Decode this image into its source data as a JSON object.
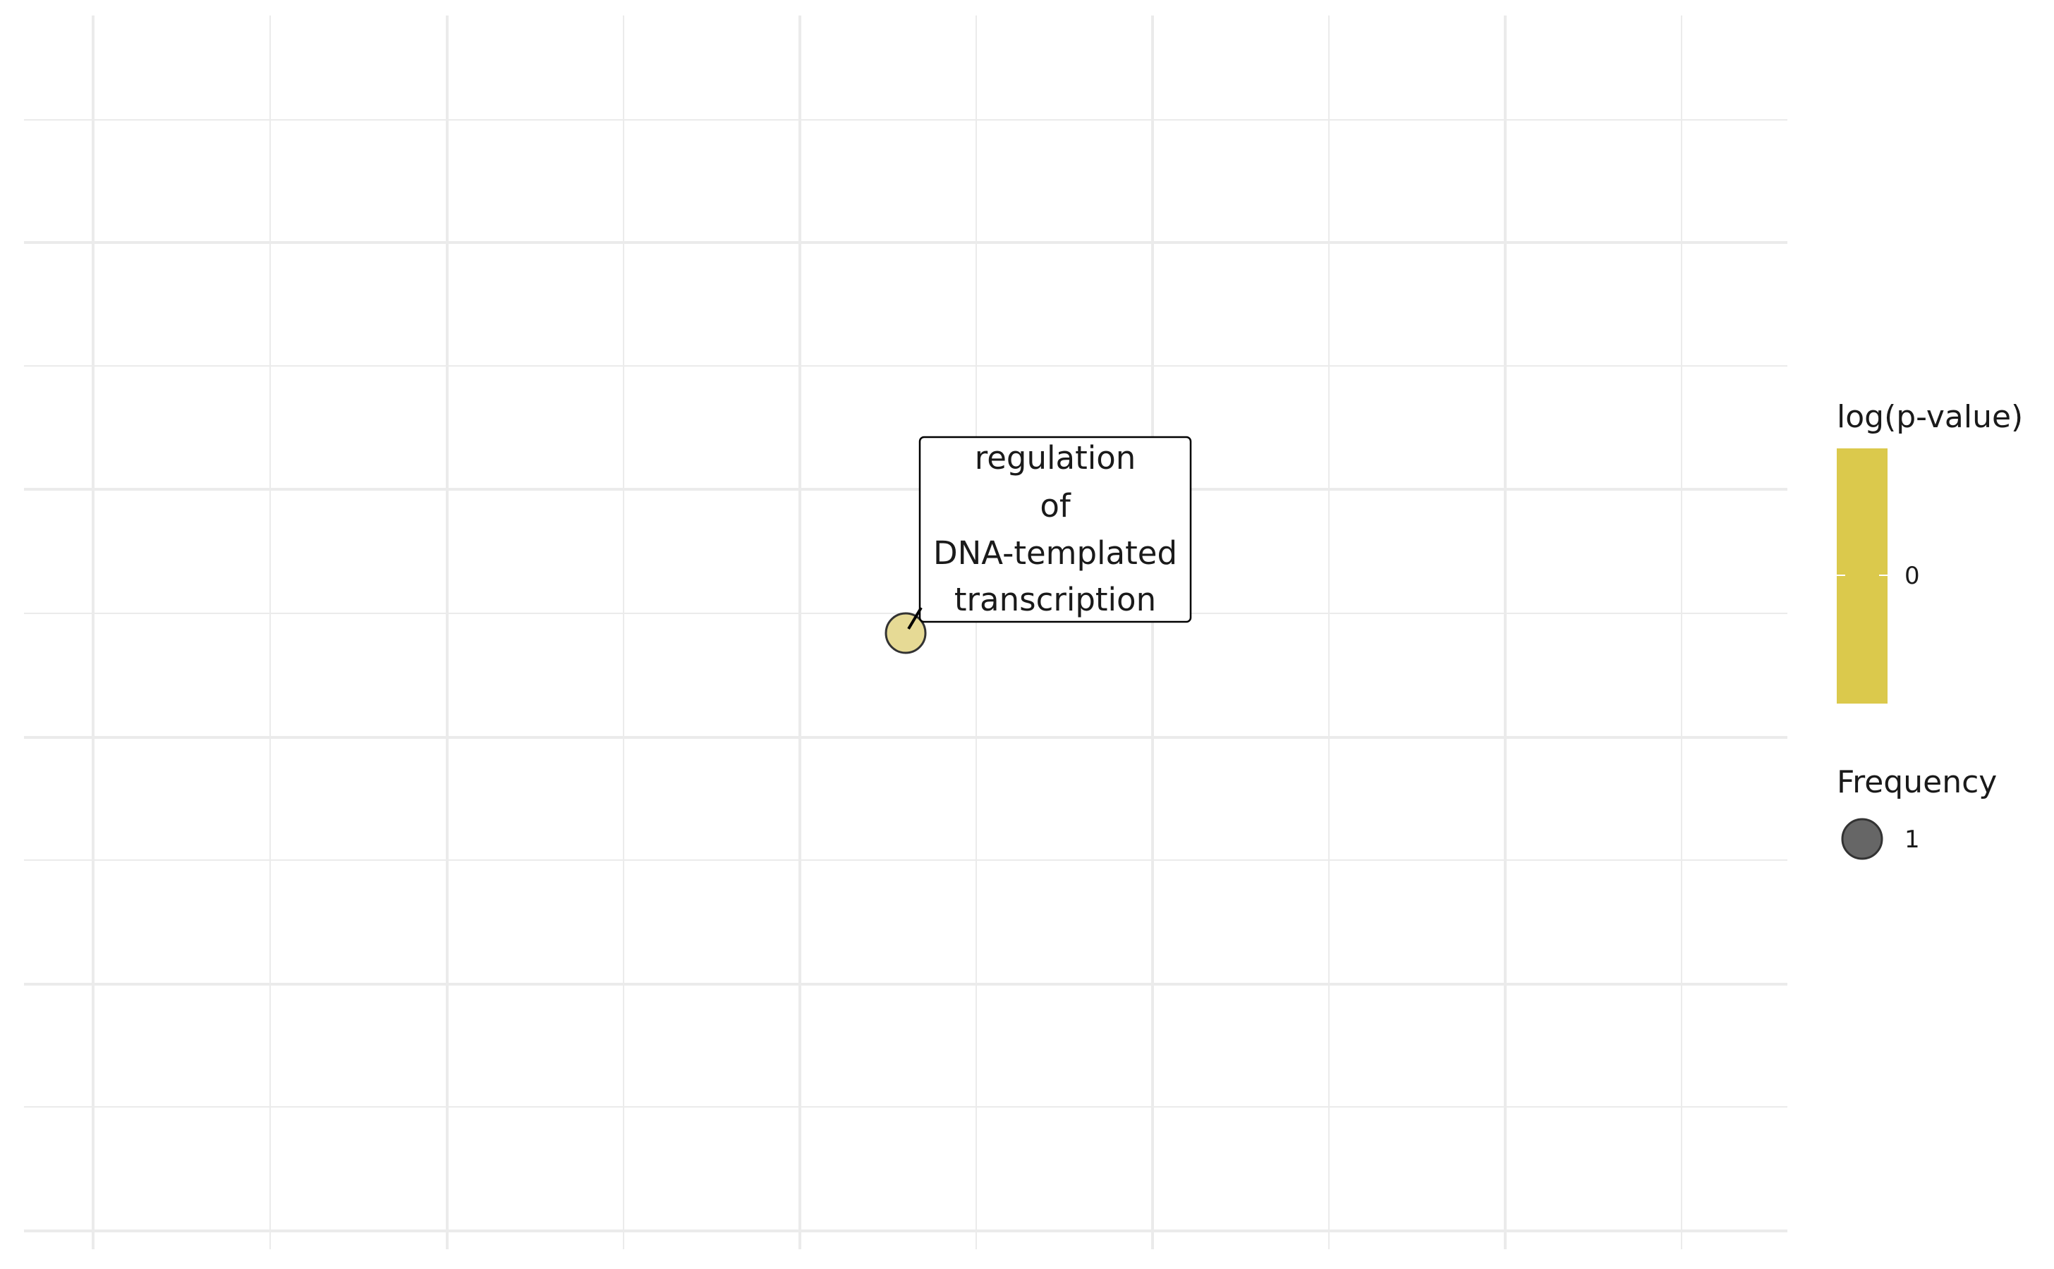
{
  "chart_data": {
    "type": "scatter",
    "title": "",
    "xlabel": "",
    "ylabel": "",
    "grid": true,
    "axis_ticks_labels_shown": false,
    "points": [
      {
        "label": [
          "regulation",
          "of",
          "DNA-templated",
          "transcription"
        ],
        "log_p_value": 0,
        "frequency": 1
      }
    ],
    "legends": {
      "color": {
        "title": "log(p-value)",
        "ticks": [
          "0"
        ],
        "color": "#DBC94C"
      },
      "size": {
        "title": "Frequency",
        "entries": [
          "1"
        ]
      }
    },
    "legend_position": "right",
    "colors": {
      "point_fill": "#E6DA95",
      "point_stroke": "#333333",
      "size_key_fill": "#666666",
      "grid": "#EBEBEB"
    }
  }
}
